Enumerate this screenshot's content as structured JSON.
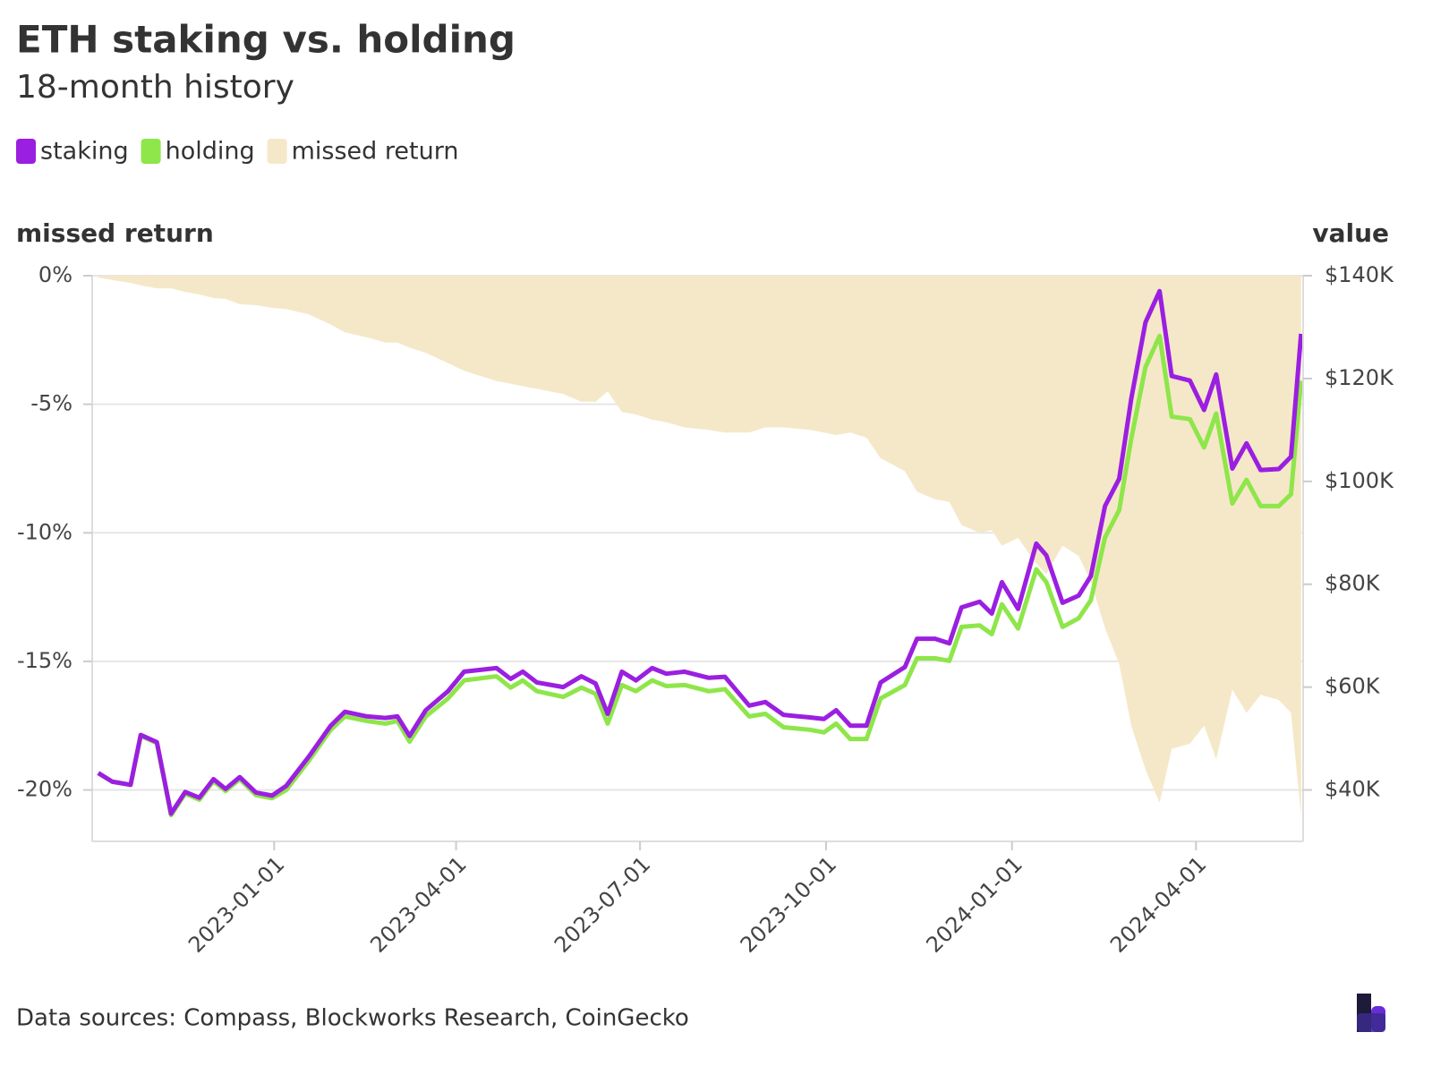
{
  "chart_data": {
    "type": "line",
    "title": "ETH staking vs. holding",
    "subtitle": "18-month history",
    "y_label": "missed return",
    "y2_label": "value",
    "source": "Data sources: Compass, Blockworks Research, CoinGecko",
    "x": [
      "2022-10-06",
      "2022-10-13",
      "2022-10-22",
      "2022-10-27",
      "2022-11-04",
      "2022-11-11",
      "2022-11-18",
      "2022-11-25",
      "2022-12-02",
      "2022-12-08",
      "2022-12-15",
      "2022-12-23",
      "2022-12-31",
      "2023-01-07",
      "2023-01-18",
      "2023-01-29",
      "2023-02-05",
      "2023-02-16",
      "2023-02-25",
      "2023-03-03",
      "2023-03-09",
      "2023-03-17",
      "2023-03-28",
      "2023-04-05",
      "2023-04-21",
      "2023-04-28",
      "2023-05-04",
      "2023-05-11",
      "2023-05-24",
      "2023-06-02",
      "2023-06-09",
      "2023-06-15",
      "2023-06-22",
      "2023-06-29",
      "2023-07-07",
      "2023-07-14",
      "2023-07-23",
      "2023-08-04",
      "2023-08-12",
      "2023-08-24",
      "2023-09-01",
      "2023-09-10",
      "2023-09-23",
      "2023-09-30",
      "2023-10-06",
      "2023-10-13",
      "2023-10-21",
      "2023-10-28",
      "2023-11-09",
      "2023-11-15",
      "2023-11-24",
      "2023-12-01",
      "2023-12-07",
      "2023-12-16",
      "2023-12-22",
      "2023-12-27",
      "2024-01-04",
      "2024-01-13",
      "2024-01-18",
      "2024-01-26",
      "2024-02-03",
      "2024-02-09",
      "2024-02-16",
      "2024-02-23",
      "2024-02-29",
      "2024-03-07",
      "2024-03-14",
      "2024-03-20",
      "2024-03-29",
      "2024-04-05",
      "2024-04-11",
      "2024-04-19",
      "2024-04-26",
      "2024-05-03",
      "2024-05-12",
      "2024-05-18",
      "2024-05-23"
    ],
    "xlim": [
      "2022-10-03",
      "2024-05-24"
    ],
    "xticks": [
      "2023-01-01",
      "2023-04-01",
      "2023-07-01",
      "2023-10-01",
      "2024-01-01",
      "2024-04-01"
    ],
    "ylim": [
      -22,
      0
    ],
    "yticks": [
      {
        "value": 0,
        "label": "0%"
      },
      {
        "value": -5,
        "label": "-5%"
      },
      {
        "value": -10,
        "label": "-10%"
      },
      {
        "value": -15,
        "label": "-15%"
      },
      {
        "value": -20,
        "label": "-20%"
      }
    ],
    "y2lim": [
      30000,
      140000
    ],
    "y2ticks": [
      {
        "value": 140000,
        "label": "$140K"
      },
      {
        "value": 120000,
        "label": "$120K"
      },
      {
        "value": 100000,
        "label": "$100K"
      },
      {
        "value": 80000,
        "label": "$80K"
      },
      {
        "value": 60000,
        "label": "$60K"
      },
      {
        "value": 40000,
        "label": "$40K"
      }
    ],
    "grid": true,
    "series": [
      {
        "name": "staking",
        "color": "#9b1fe0",
        "axis": "y2",
        "type": "line",
        "values": [
          43300,
          41600,
          41000,
          50700,
          49300,
          35400,
          39600,
          38500,
          42100,
          40200,
          42500,
          39500,
          38900,
          40800,
          46400,
          52500,
          55200,
          54300,
          54000,
          54300,
          50500,
          55500,
          59200,
          63000,
          63700,
          61600,
          63000,
          60900,
          60000,
          62100,
          60700,
          54800,
          63000,
          61300,
          63700,
          62600,
          63000,
          61800,
          62000,
          56400,
          57100,
          54600,
          54100,
          53800,
          55500,
          52500,
          52500,
          60900,
          63900,
          69400,
          69400,
          68500,
          75500,
          76600,
          74300,
          80400,
          75200,
          87900,
          85600,
          76400,
          77800,
          81600,
          95200,
          100500,
          116100,
          130900,
          137000,
          120500,
          119600,
          113900,
          120800,
          102500,
          107400,
          102200,
          102400,
          104800,
          128700
        ]
      },
      {
        "name": "holding",
        "color": "#8ee64a",
        "axis": "y2",
        "type": "line",
        "values": [
          43300,
          41600,
          41000,
          50500,
          49100,
          35100,
          39300,
          38100,
          41700,
          39800,
          42100,
          39000,
          38400,
          40000,
          45600,
          51700,
          54300,
          53400,
          52900,
          53400,
          49400,
          54300,
          57800,
          61300,
          62100,
          59900,
          61300,
          59200,
          58100,
          59900,
          58700,
          52900,
          60400,
          59200,
          61300,
          60200,
          60400,
          59200,
          59600,
          54300,
          54800,
          52200,
          51700,
          51200,
          52900,
          49900,
          49900,
          57800,
          60400,
          65600,
          65600,
          65100,
          71700,
          72000,
          70300,
          76100,
          71400,
          82900,
          80400,
          71700,
          73400,
          76900,
          89100,
          94400,
          108300,
          122200,
          128300,
          112600,
          112100,
          106600,
          113200,
          95700,
          100300,
          95200,
          95200,
          97500,
          119600
        ]
      },
      {
        "name": "missed return",
        "color": "#f5e8c9",
        "axis": "y",
        "type": "area",
        "values": [
          -0.07,
          -0.17,
          -0.28,
          -0.38,
          -0.49,
          -0.49,
          -0.63,
          -0.73,
          -0.87,
          -0.9,
          -1.11,
          -1.15,
          -1.25,
          -1.3,
          -1.5,
          -1.9,
          -2.2,
          -2.4,
          -2.6,
          -2.6,
          -2.8,
          -3.0,
          -3.4,
          -3.7,
          -4.1,
          -4.2,
          -4.3,
          -4.4,
          -4.6,
          -4.9,
          -4.9,
          -4.5,
          -5.3,
          -5.4,
          -5.6,
          -5.7,
          -5.9,
          -6.0,
          -6.1,
          -6.1,
          -5.9,
          -5.9,
          -6.0,
          -6.1,
          -6.2,
          -6.1,
          -6.3,
          -7.1,
          -7.6,
          -8.4,
          -8.7,
          -8.8,
          -9.7,
          -10.0,
          -9.9,
          -10.5,
          -10.2,
          -11.2,
          -11.6,
          -10.5,
          -10.9,
          -11.9,
          -13.7,
          -15.1,
          -17.5,
          -19.2,
          -20.5,
          -18.4,
          -18.2,
          -17.5,
          -18.8,
          -16.1,
          -17.0,
          -16.3,
          -16.5,
          -17.0,
          -21.0
        ]
      }
    ]
  }
}
